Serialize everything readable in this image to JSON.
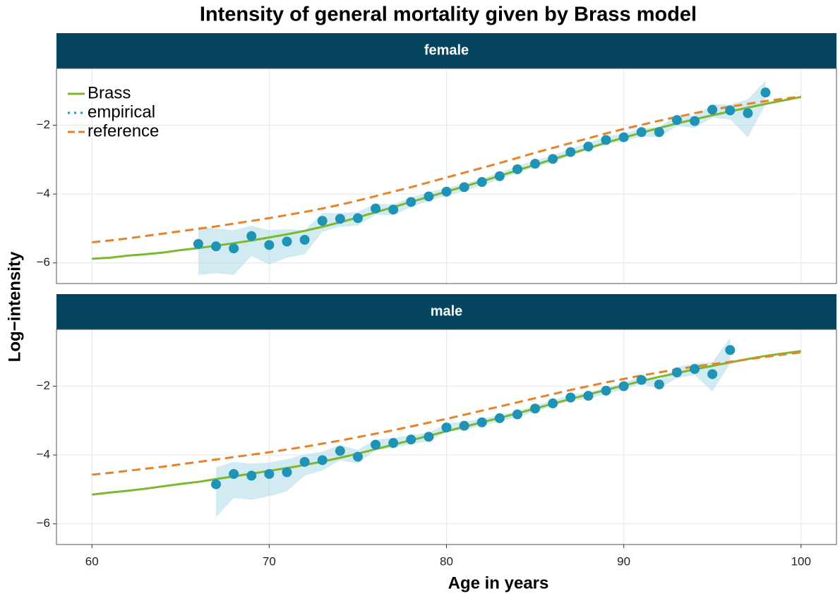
{
  "chart_data": {
    "type": "line",
    "title": "Intensity of general mortality given by Brass model",
    "x_label": "Age in years",
    "y_label": "Log−intensity",
    "xlim": [
      58,
      102
    ],
    "ylim": [
      -6.6,
      -0.35
    ],
    "xticks": [
      60,
      70,
      80,
      90,
      100
    ],
    "yticks": [
      {
        "value": -6,
        "label": "−6"
      },
      {
        "value": -4,
        "label": "−4"
      },
      {
        "value": -2,
        "label": "−2"
      }
    ],
    "grid": true,
    "legend": "top-left",
    "strip_color": "#04445f",
    "band_color": "#add8e6",
    "series": [
      {
        "name": "Brass",
        "color": "#7cb82f",
        "style": "solid"
      },
      {
        "name": "empirical",
        "color": "#1f93b5",
        "style": "points"
      },
      {
        "name": "reference",
        "color": "#e8822a",
        "style": "dashed"
      }
    ],
    "panels": [
      {
        "label": "female",
        "x": [
          60,
          61,
          62,
          63,
          64,
          65,
          66,
          67,
          68,
          69,
          70,
          71,
          72,
          73,
          74,
          75,
          76,
          77,
          78,
          79,
          80,
          81,
          82,
          83,
          84,
          85,
          86,
          87,
          88,
          89,
          90,
          91,
          92,
          93,
          94,
          95,
          96,
          97,
          98,
          99,
          100
        ],
        "series": [
          {
            "values": [
              -5.88,
              -5.85,
              -5.79,
              -5.75,
              -5.7,
              -5.63,
              -5.57,
              -5.5,
              -5.43,
              -5.35,
              -5.26,
              -5.17,
              -5.07,
              -4.95,
              -4.82,
              -4.68,
              -4.53,
              -4.38,
              -4.23,
              -4.08,
              -3.93,
              -3.78,
              -3.63,
              -3.47,
              -3.31,
              -3.15,
              -2.99,
              -2.83,
              -2.67,
              -2.51,
              -2.36,
              -2.22,
              -2.08,
              -1.95,
              -1.83,
              -1.71,
              -1.6,
              -1.49,
              -1.38,
              -1.28,
              -1.18
            ]
          },
          {
            "x": [
              66,
              67,
              68,
              69,
              70,
              71,
              72,
              73,
              74,
              75,
              76,
              77,
              78,
              79,
              80,
              81,
              82,
              83,
              84,
              85,
              86,
              87,
              88,
              89,
              90,
              91,
              92,
              93,
              94,
              95,
              96,
              97,
              98
            ],
            "values": [
              -5.45,
              -5.52,
              -5.58,
              -5.22,
              -5.48,
              -5.38,
              -5.33,
              -4.78,
              -4.72,
              -4.7,
              -4.42,
              -4.45,
              -4.23,
              -4.07,
              -3.93,
              -3.8,
              -3.65,
              -3.48,
              -3.28,
              -3.12,
              -2.98,
              -2.78,
              -2.62,
              -2.43,
              -2.35,
              -2.2,
              -2.2,
              -1.85,
              -1.88,
              -1.55,
              -1.57,
              -1.65,
              -1.05
            ],
            "lower": [
              -6.35,
              -6.3,
              -6.35,
              -5.8,
              -6.05,
              -5.85,
              -5.75,
              -5.1,
              -4.95,
              -4.92,
              -4.6,
              -4.62,
              -4.38,
              -4.2,
              -4.05,
              -3.92,
              -3.75,
              -3.58,
              -3.38,
              -3.22,
              -3.08,
              -2.88,
              -2.72,
              -2.54,
              -2.47,
              -2.33,
              -2.35,
              -2.02,
              -2.08,
              -1.78,
              -1.83,
              -2.35,
              -1.4
            ],
            "upper": [
              -4.95,
              -5.0,
              -5.05,
              -4.92,
              -5.05,
              -5.02,
              -5.05,
              -4.55,
              -4.55,
              -4.52,
              -4.28,
              -4.3,
              -4.1,
              -3.95,
              -3.82,
              -3.7,
              -3.55,
              -3.38,
              -3.18,
              -3.02,
              -2.88,
              -2.68,
              -2.52,
              -2.33,
              -2.25,
              -2.08,
              -2.06,
              -1.7,
              -1.72,
              -1.4,
              -1.4,
              -1.25,
              -0.7
            ]
          },
          {
            "values": [
              -5.4,
              -5.35,
              -5.29,
              -5.22,
              -5.15,
              -5.08,
              -5.01,
              -4.94,
              -4.86,
              -4.78,
              -4.7,
              -4.61,
              -4.52,
              -4.42,
              -4.31,
              -4.19,
              -4.06,
              -3.93,
              -3.8,
              -3.66,
              -3.52,
              -3.38,
              -3.24,
              -3.1,
              -2.95,
              -2.8,
              -2.66,
              -2.52,
              -2.38,
              -2.24,
              -2.11,
              -1.99,
              -1.87,
              -1.76,
              -1.65,
              -1.55,
              -1.46,
              -1.38,
              -1.3,
              -1.23,
              -1.17
            ]
          }
        ]
      },
      {
        "label": "male",
        "x": [
          60,
          61,
          62,
          63,
          64,
          65,
          66,
          67,
          68,
          69,
          70,
          71,
          72,
          73,
          74,
          75,
          76,
          77,
          78,
          79,
          80,
          81,
          82,
          83,
          84,
          85,
          86,
          87,
          88,
          89,
          90,
          91,
          92,
          93,
          94,
          95,
          96,
          97,
          98,
          99,
          100
        ],
        "series": [
          {
            "values": [
              -5.15,
              -5.09,
              -5.04,
              -4.98,
              -4.91,
              -4.84,
              -4.78,
              -4.7,
              -4.62,
              -4.54,
              -4.46,
              -4.38,
              -4.29,
              -4.19,
              -4.08,
              -3.96,
              -3.83,
              -3.7,
              -3.57,
              -3.44,
              -3.31,
              -3.18,
              -3.05,
              -2.92,
              -2.79,
              -2.65,
              -2.51,
              -2.37,
              -2.24,
              -2.11,
              -1.98,
              -1.85,
              -1.73,
              -1.62,
              -1.51,
              -1.41,
              -1.31,
              -1.21,
              -1.12,
              -1.05,
              -0.98
            ]
          },
          {
            "x": [
              67,
              68,
              69,
              70,
              71,
              72,
              73,
              74,
              75,
              76,
              77,
              78,
              79,
              80,
              81,
              82,
              83,
              84,
              85,
              86,
              87,
              88,
              89,
              90,
              91,
              92,
              93,
              94,
              95,
              96
            ],
            "values": [
              -4.85,
              -4.55,
              -4.6,
              -4.55,
              -4.5,
              -4.2,
              -4.15,
              -3.88,
              -4.05,
              -3.7,
              -3.65,
              -3.55,
              -3.47,
              -3.2,
              -3.15,
              -3.05,
              -2.93,
              -2.82,
              -2.65,
              -2.5,
              -2.33,
              -2.28,
              -2.13,
              -2.0,
              -1.82,
              -1.95,
              -1.6,
              -1.5,
              -1.65,
              -0.95
            ],
            "lower": [
              -5.8,
              -5.25,
              -5.3,
              -5.2,
              -5.05,
              -4.6,
              -4.45,
              -4.15,
              -4.25,
              -3.85,
              -3.8,
              -3.68,
              -3.6,
              -3.32,
              -3.27,
              -3.15,
              -3.02,
              -2.91,
              -2.74,
              -2.59,
              -2.42,
              -2.37,
              -2.22,
              -2.1,
              -1.93,
              -2.08,
              -1.76,
              -1.68,
              -2.15,
              -1.35
            ],
            "upper": [
              -4.35,
              -4.2,
              -4.25,
              -4.22,
              -4.12,
              -3.98,
              -3.9,
              -3.7,
              -3.85,
              -3.55,
              -3.5,
              -3.42,
              -3.35,
              -3.08,
              -3.03,
              -2.95,
              -2.83,
              -2.73,
              -2.56,
              -2.41,
              -2.24,
              -2.19,
              -2.04,
              -1.9,
              -1.71,
              -1.82,
              -1.45,
              -1.34,
              -1.3,
              -0.6
            ]
          },
          {
            "values": [
              -4.57,
              -4.52,
              -4.46,
              -4.4,
              -4.34,
              -4.27,
              -4.2,
              -4.13,
              -4.06,
              -3.99,
              -3.92,
              -3.84,
              -3.76,
              -3.67,
              -3.58,
              -3.48,
              -3.38,
              -3.28,
              -3.17,
              -3.06,
              -2.95,
              -2.83,
              -2.71,
              -2.59,
              -2.47,
              -2.35,
              -2.23,
              -2.11,
              -2.0,
              -1.89,
              -1.79,
              -1.69,
              -1.6,
              -1.51,
              -1.43,
              -1.36,
              -1.29,
              -1.22,
              -1.15,
              -1.08,
              -1.02
            ]
          }
        ]
      }
    ]
  }
}
